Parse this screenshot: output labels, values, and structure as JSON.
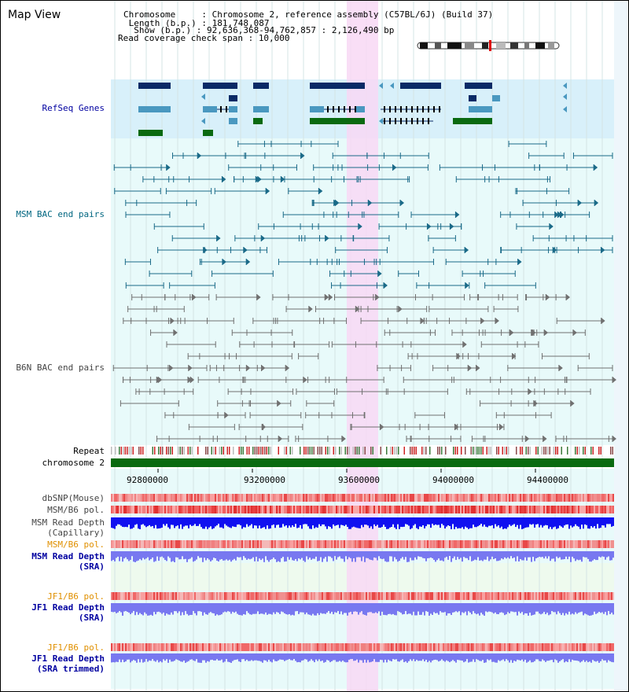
{
  "title": "Map View",
  "info": {
    "chromosome_label": "Chromosome     : ",
    "chromosome_value": "Chromosome 2, reference assembly (C57BL/6J) (Build 37)",
    "length_label": " Length (b.p.) : ",
    "length_value": "181,748,087",
    "show_label": "  Show (b.p.) : ",
    "show_value": "92,636,368-94,762,857 : 2,126,490 bp",
    "coverage_label": "Read coverage check span : ",
    "coverage_value": "10,000"
  },
  "tracks": {
    "refseq": "RefSeq Genes",
    "msm_bac": "MSM BAC end pairs",
    "b6n_bac": "B6N BAC end pairs",
    "repeat": "Repeat",
    "chromosome": "chromosome 2",
    "dbsnp": "dbSNP(Mouse)",
    "msm_b6_pol_1": "MSM/B6 pol.",
    "msm_read_depth_cap_1": "MSM Read Depth",
    "msm_read_depth_cap_2": "(Capillary)",
    "msm_b6_pol_2": "MSM/B6 pol.",
    "msm_read_depth_sra_1": "MSM Read Depth",
    "msm_read_depth_sra_2": "(SRA)",
    "jf1_b6_pol_1": "JF1/B6 pol.",
    "jf1_read_depth_sra_1": "JF1 Read Depth",
    "jf1_read_depth_sra_2": "(SRA)",
    "jf1_b6_pol_2": "JF1/B6 pol.",
    "jf1_read_depth_trim_1": "JF1 Read Depth",
    "jf1_read_depth_trim_2": "(SRA trimmed)"
  },
  "axis": {
    "ticks": [
      "92800000",
      "93200000",
      "93600000",
      "94000000",
      "94400000"
    ]
  },
  "colors": {
    "refseq_bg": "#d8f0fa",
    "track_bg": "#e8fafa",
    "highlight": "#f8d8f4",
    "navy": "#0a2a66",
    "steel": "#4a98c0",
    "green": "#0a6a10",
    "bac_msm": "#1a6a88",
    "bac_b6n": "#707070",
    "label_blue": "#0000a0",
    "label_teal": "#006680",
    "label_orange": "#e09000",
    "read_blue": "#1010f0",
    "read_purple": "#7878f0"
  }
}
